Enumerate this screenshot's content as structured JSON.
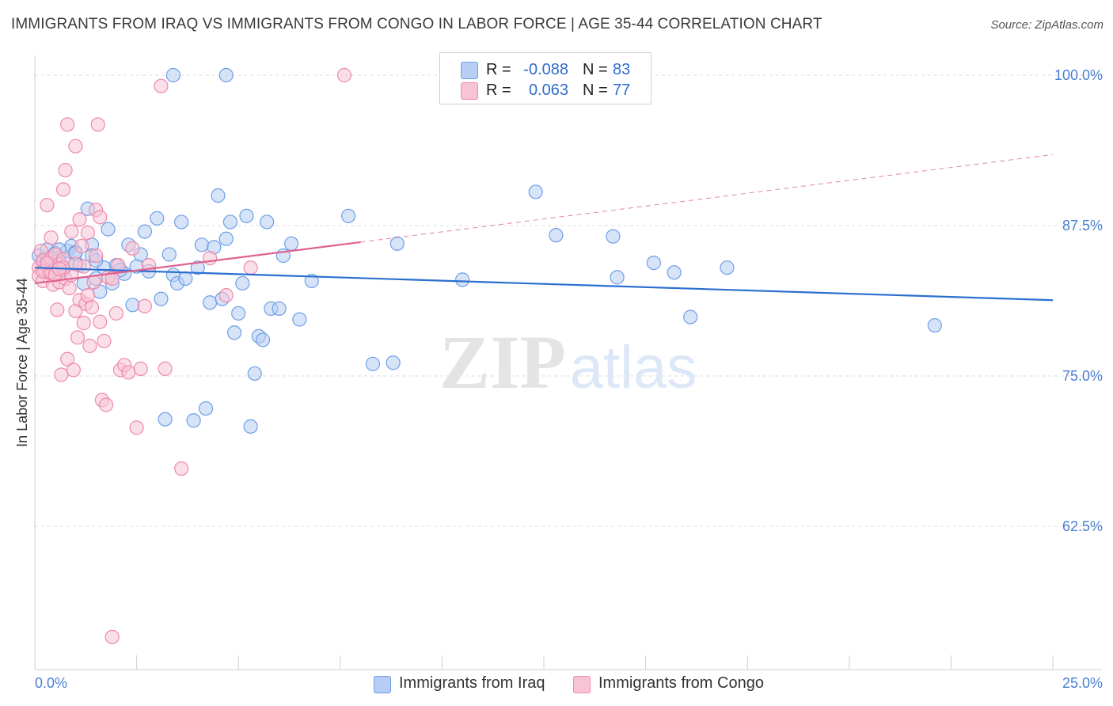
{
  "chart_data": {
    "type": "scatter",
    "title": "IMMIGRANTS FROM IRAQ VS IMMIGRANTS FROM CONGO IN LABOR FORCE | AGE 35-44 CORRELATION CHART",
    "source": "Source: ZipAtlas.com",
    "watermark": {
      "zip": "ZIP",
      "atlas": "atlas"
    },
    "xlabel": "",
    "ylabel": "In Labor Force | Age 35-44",
    "xlim": [
      0,
      25
    ],
    "ylim": [
      51,
      101
    ],
    "x_tick_labels": {
      "min": "0.0%",
      "max": "25.0%"
    },
    "y_ticks": [
      {
        "value": 62.5,
        "label": "62.5%"
      },
      {
        "value": 75.0,
        "label": "75.0%"
      },
      {
        "value": 87.5,
        "label": "87.5%"
      },
      {
        "value": 100.0,
        "label": "100.0%"
      }
    ],
    "grid": true,
    "legend_position": "bottom-center",
    "series": [
      {
        "name": "Immigrants from Iraq",
        "color": "#6e9ee8",
        "fill": "#b7cdf3",
        "line_color": "#2b6fd0",
        "R": "-0.088",
        "N": "83",
        "trend": {
          "x0": 0,
          "y0": 84.0,
          "x1": 25,
          "y1": 81.3,
          "dashed_from": null
        },
        "points": [
          [
            0.1,
            85.0
          ],
          [
            0.2,
            84.5
          ],
          [
            0.3,
            85.5
          ],
          [
            0.4,
            84.0
          ],
          [
            0.5,
            85.2
          ],
          [
            0.6,
            84.8
          ],
          [
            0.7,
            83.8
          ],
          [
            0.8,
            85.4
          ],
          [
            0.9,
            85.8
          ],
          [
            1.0,
            85.3
          ],
          [
            1.1,
            84.2
          ],
          [
            1.2,
            82.7
          ],
          [
            1.3,
            88.9
          ],
          [
            1.4,
            85.9
          ],
          [
            1.5,
            83.1
          ],
          [
            1.6,
            82.0
          ],
          [
            1.7,
            84.0
          ],
          [
            1.8,
            87.2
          ],
          [
            1.9,
            82.7
          ],
          [
            2.0,
            84.2
          ],
          [
            2.2,
            83.5
          ],
          [
            2.3,
            85.9
          ],
          [
            2.4,
            80.9
          ],
          [
            2.5,
            84.1
          ],
          [
            2.6,
            85.1
          ],
          [
            2.7,
            87.0
          ],
          [
            2.8,
            83.7
          ],
          [
            3.0,
            88.1
          ],
          [
            3.1,
            81.4
          ],
          [
            3.2,
            71.4
          ],
          [
            3.3,
            85.1
          ],
          [
            3.4,
            83.4
          ],
          [
            3.5,
            82.7
          ],
          [
            3.6,
            87.8
          ],
          [
            3.7,
            83.1
          ],
          [
            3.9,
            71.3
          ],
          [
            4.0,
            84.0
          ],
          [
            4.1,
            85.9
          ],
          [
            4.2,
            72.3
          ],
          [
            4.3,
            81.1
          ],
          [
            4.4,
            85.7
          ],
          [
            4.5,
            90.0
          ],
          [
            4.6,
            81.4
          ],
          [
            4.7,
            86.4
          ],
          [
            4.8,
            87.8
          ],
          [
            4.9,
            78.6
          ],
          [
            5.0,
            80.2
          ],
          [
            5.1,
            82.7
          ],
          [
            5.2,
            88.3
          ],
          [
            5.3,
            70.8
          ],
          [
            5.4,
            75.2
          ],
          [
            5.5,
            78.3
          ],
          [
            5.6,
            78.0
          ],
          [
            5.7,
            87.8
          ],
          [
            5.8,
            80.6
          ],
          [
            6.0,
            80.6
          ],
          [
            6.1,
            85.0
          ],
          [
            6.3,
            86.0
          ],
          [
            6.5,
            79.7
          ],
          [
            6.8,
            82.9
          ],
          [
            7.7,
            88.3
          ],
          [
            8.3,
            76.0
          ],
          [
            8.8,
            76.1
          ],
          [
            8.9,
            86.0
          ],
          [
            3.4,
            100.0
          ],
          [
            4.7,
            100.0
          ],
          [
            10.5,
            83.0
          ],
          [
            12.3,
            90.3
          ],
          [
            12.8,
            86.7
          ],
          [
            14.2,
            86.6
          ],
          [
            14.3,
            83.2
          ],
          [
            15.2,
            84.4
          ],
          [
            15.7,
            83.6
          ],
          [
            16.1,
            79.9
          ],
          [
            17.0,
            84.0
          ],
          [
            22.1,
            79.2
          ],
          [
            1.4,
            85.0
          ],
          [
            0.8,
            84.3
          ],
          [
            1.0,
            85.2
          ],
          [
            2.1,
            83.8
          ],
          [
            0.3,
            84.7
          ],
          [
            0.6,
            85.5
          ],
          [
            1.5,
            84.6
          ]
        ]
      },
      {
        "name": "Immigrants from Congo",
        "color": "#ee8aaa",
        "fill": "#f8c4d5",
        "line_color": "#e0628e",
        "R": "0.063",
        "N": "77",
        "trend": {
          "x0": 0,
          "y0": 82.7,
          "x1": 25,
          "y1": 93.4,
          "solid_until": 8.0
        },
        "points": [
          [
            0.1,
            84.0
          ],
          [
            0.1,
            83.3
          ],
          [
            0.15,
            85.4
          ],
          [
            0.2,
            82.9
          ],
          [
            0.2,
            84.6
          ],
          [
            0.25,
            83.8
          ],
          [
            0.3,
            89.2
          ],
          [
            0.3,
            84.2
          ],
          [
            0.35,
            83.6
          ],
          [
            0.4,
            84.8
          ],
          [
            0.4,
            86.5
          ],
          [
            0.45,
            82.6
          ],
          [
            0.5,
            83.9
          ],
          [
            0.5,
            85.1
          ],
          [
            0.55,
            80.5
          ],
          [
            0.6,
            84.3
          ],
          [
            0.6,
            82.8
          ],
          [
            0.65,
            75.1
          ],
          [
            0.7,
            90.5
          ],
          [
            0.7,
            84.7
          ],
          [
            0.75,
            92.1
          ],
          [
            0.75,
            83.1
          ],
          [
            0.8,
            76.4
          ],
          [
            0.8,
            95.9
          ],
          [
            0.85,
            82.3
          ],
          [
            0.9,
            87.0
          ],
          [
            0.9,
            83.4
          ],
          [
            0.95,
            75.5
          ],
          [
            1.0,
            80.4
          ],
          [
            1.0,
            94.1
          ],
          [
            1.05,
            78.2
          ],
          [
            1.1,
            81.3
          ],
          [
            1.1,
            88.0
          ],
          [
            1.15,
            85.8
          ],
          [
            1.2,
            84.1
          ],
          [
            1.2,
            79.4
          ],
          [
            1.25,
            81.0
          ],
          [
            1.3,
            81.7
          ],
          [
            1.3,
            86.9
          ],
          [
            1.35,
            77.5
          ],
          [
            1.4,
            80.7
          ],
          [
            1.45,
            82.8
          ],
          [
            1.5,
            88.8
          ],
          [
            1.5,
            85.0
          ],
          [
            1.55,
            95.9
          ],
          [
            1.6,
            88.2
          ],
          [
            1.6,
            79.5
          ],
          [
            1.65,
            73.0
          ],
          [
            1.7,
            77.9
          ],
          [
            1.75,
            72.6
          ],
          [
            1.8,
            83.2
          ],
          [
            1.9,
            83.1
          ],
          [
            2.0,
            80.2
          ],
          [
            2.05,
            84.2
          ],
          [
            2.1,
            75.5
          ],
          [
            2.2,
            75.9
          ],
          [
            2.3,
            75.3
          ],
          [
            2.4,
            85.6
          ],
          [
            2.5,
            70.7
          ],
          [
            2.6,
            75.6
          ],
          [
            2.7,
            80.8
          ],
          [
            2.8,
            84.2
          ],
          [
            3.1,
            99.1
          ],
          [
            3.2,
            75.6
          ],
          [
            3.6,
            67.3
          ],
          [
            4.3,
            84.8
          ],
          [
            4.7,
            81.7
          ],
          [
            5.3,
            84.0
          ],
          [
            7.6,
            100.0
          ],
          [
            1.9,
            53.3
          ],
          [
            0.2,
            83.7
          ],
          [
            0.4,
            83.6
          ],
          [
            0.3,
            84.4
          ],
          [
            0.5,
            83.4
          ],
          [
            0.7,
            84.0
          ],
          [
            1.0,
            84.3
          ],
          [
            0.6,
            83.9
          ]
        ]
      }
    ]
  }
}
